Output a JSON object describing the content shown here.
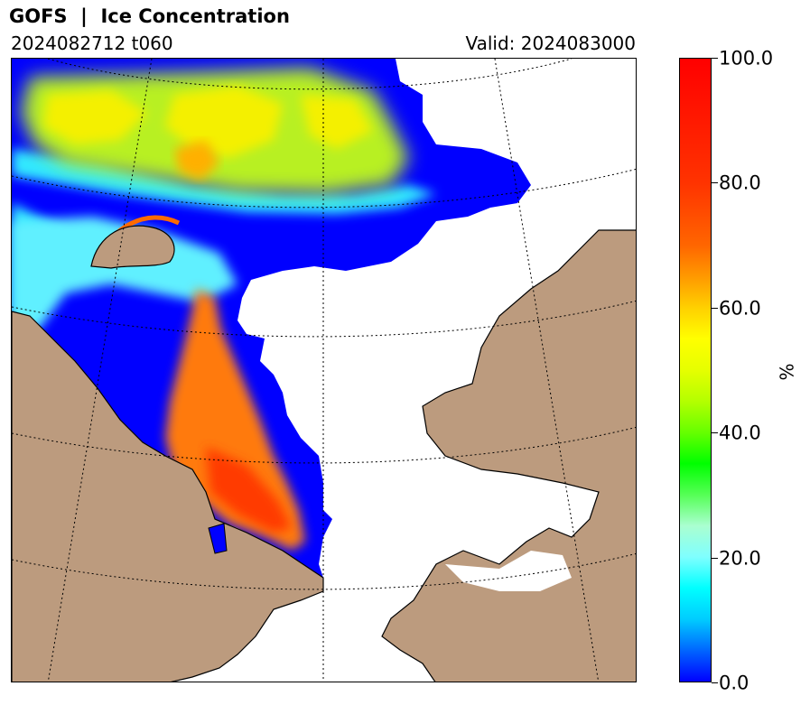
{
  "header": {
    "title": "GOFS  |  Ice Concentration",
    "run_info": "2024082712 t060",
    "valid_time": "Valid: 2024083000"
  },
  "colorbar": {
    "unit": "%",
    "ticks": [
      "0.0",
      "20.0",
      "40.0",
      "60.0",
      "80.0",
      "100.0"
    ],
    "range": [
      0,
      100
    ]
  },
  "colors": {
    "land": "#bc9b7e",
    "ocean": "#ffffff",
    "ice_low": "#0000ff",
    "ice_high": "#ff0000"
  }
}
